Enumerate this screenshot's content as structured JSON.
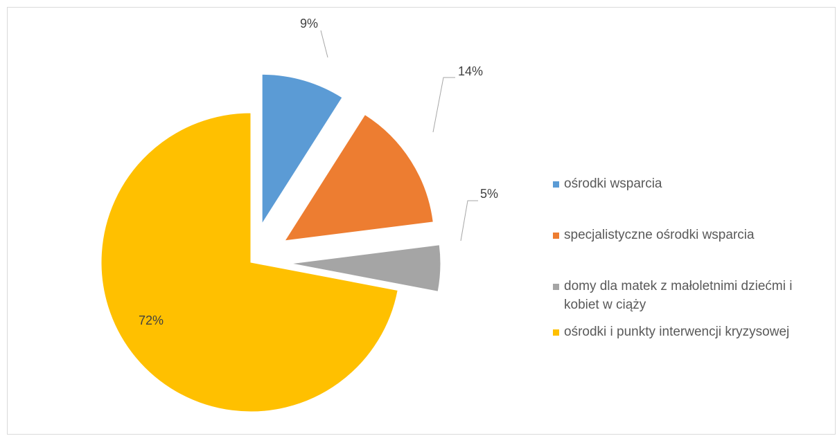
{
  "chart_data": {
    "type": "pie",
    "exploded": true,
    "slices": [
      {
        "label": "ośrodki wsparcia",
        "value": 9,
        "data_label": "9%",
        "color": "#5B9BD5"
      },
      {
        "label": "specjalistyczne ośrodki wsparcia",
        "value": 14,
        "data_label": "14%",
        "color": "#ED7D31"
      },
      {
        "label": "domy dla matek z małoletnimi dziećmi i kobiet w ciąży",
        "value": 5,
        "data_label": "5%",
        "color": "#A5A5A5"
      },
      {
        "label": "ośrodki i punkty interwencji kryzysowej",
        "value": 72,
        "data_label": "72%",
        "color": "#FFC000"
      }
    ],
    "legend_position": "right"
  }
}
